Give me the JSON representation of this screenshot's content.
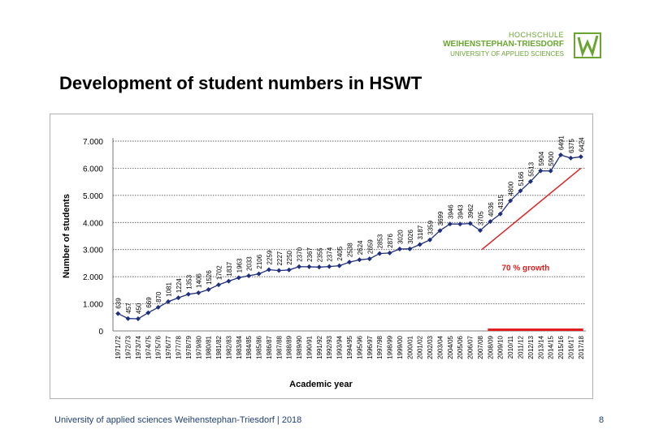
{
  "logo": {
    "line1": "HOCHSCHULE",
    "line2": "WEIHENSTEPHAN-TRIESDORF",
    "line3": "UNIVERSITY OF APPLIED SCIENCES",
    "color": "#6aa531"
  },
  "slide_title": "Development of student numbers in HSWT",
  "footer": {
    "text": "University of applied sciences Weihenstephan-Triesdorf | 2018",
    "page": "8"
  },
  "chart_data": {
    "type": "line",
    "xlabel": "Academic year",
    "ylabel": "Number of students",
    "ylim": [
      0,
      7000
    ],
    "yticks": [
      0,
      1000,
      2000,
      3000,
      4000,
      5000,
      6000,
      7000
    ],
    "ytick_labels": [
      "0",
      "1.000",
      "2.000",
      "3.000",
      "4.000",
      "5.000",
      "6.000",
      "7.000"
    ],
    "grid": true,
    "line_color": "#1f2f7f",
    "categories": [
      "1971/72",
      "1972/73",
      "1973/74",
      "1974/75",
      "1975/76",
      "1976/77",
      "1977/78",
      "1978/79",
      "1979/80",
      "1980/81",
      "1981/82",
      "1982/83",
      "1983/84",
      "1984/85",
      "1985/86",
      "1986/87",
      "1987/88",
      "1988/89",
      "1989/90",
      "1990/91",
      "1991/92",
      "1992/93",
      "1993/94",
      "1994/95",
      "1995/96",
      "1996/97",
      "1997/98",
      "1998/99",
      "1999/00",
      "2000/01",
      "2001/02",
      "2002/03",
      "2003/04",
      "2004/05",
      "2005/06",
      "2006/07",
      "2007/08",
      "2008/09",
      "2009/10",
      "2010/11",
      "2011/12",
      "2012/13",
      "2013/14",
      "2014/15",
      "2015/16",
      "2016/17",
      "2017/18"
    ],
    "category_labels": [
      "1971/72",
      "1972/73",
      "1973/74",
      "1974/75",
      "1975/76",
      "1976/77",
      "1977/78",
      "1978/79",
      "1979/80",
      "1980/81",
      "1981/82",
      "1982/83",
      "1983/84",
      "1984/85",
      "1985/86",
      "1986/87",
      "1987/88",
      "1988/89",
      "1989/90",
      "1990/91",
      "1991/92",
      "1992/93",
      "1993/94",
      "1994/95",
      "1995/96",
      "1996/97",
      "1997/98",
      "1998/99",
      "1999/00",
      "2000/01",
      "2001/02",
      "2002/03",
      "2003/04",
      "2004/05",
      "2005/06",
      "2006/07",
      "2007/08",
      "2008/09",
      "2009/10",
      "2010/11",
      "2011/12",
      "2012/13",
      "2013/14",
      "2014/15",
      "2015/16",
      "2016/17",
      "2017/18"
    ],
    "values": [
      639,
      457,
      450,
      669,
      870,
      1081,
      1224,
      1353,
      1406,
      1526,
      1702,
      1837,
      1963,
      2033,
      2106,
      2259,
      2227,
      2250,
      2370,
      2367,
      2355,
      2374,
      2405,
      2538,
      2624,
      2659,
      2853,
      2876,
      3020,
      3026,
      3187,
      3359,
      3699,
      3946,
      3943,
      3962,
      3705,
      4036,
      4315,
      4800,
      5166,
      5513,
      5904,
      5900,
      6491,
      6375,
      6424
    ],
    "value_labels": [
      "639",
      "457",
      "450",
      "669",
      "870",
      "1081",
      "1224",
      "1353",
      "1406",
      "1526",
      "1702",
      "1837",
      "1963",
      "2033",
      "2106",
      "2259",
      "2227",
      "2250",
      "2370",
      "2367",
      "2355",
      "2374",
      "2405",
      "2538",
      "2624",
      "2659",
      "2853",
      "2876",
      "3020",
      "3026",
      "3187",
      "3359",
      "3699",
      "3946",
      "3943",
      "3962",
      "3705",
      "4036",
      "4315",
      "4800",
      "5166",
      "5513",
      "5904",
      "5900",
      "6491",
      "6375",
      "6424"
    ],
    "annotation": {
      "text": "70 % growth",
      "color": "#e02020",
      "from_index": 36,
      "to_index": 46,
      "from_value": 3000,
      "to_value": 6000,
      "bar_from_index": 37,
      "bar_to_index": 46
    }
  }
}
